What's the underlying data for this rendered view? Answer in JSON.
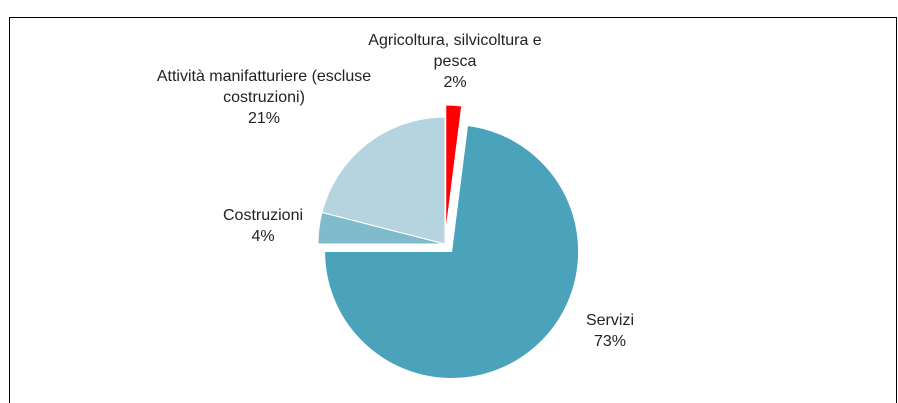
{
  "chart_data": {
    "type": "pie",
    "categories": [
      "Agricoltura, silvicoltura e pesca",
      "Servizi",
      "Costruzioni",
      "Attività manifatturiere (escluse costruzioni)"
    ],
    "values": [
      2,
      73,
      4,
      21
    ],
    "value_labels": [
      "2%",
      "73%",
      "4%",
      "21%"
    ],
    "colors": [
      "#ff0000",
      "#4aa3bb",
      "#7fbacd",
      "#b6d4df"
    ]
  }
}
